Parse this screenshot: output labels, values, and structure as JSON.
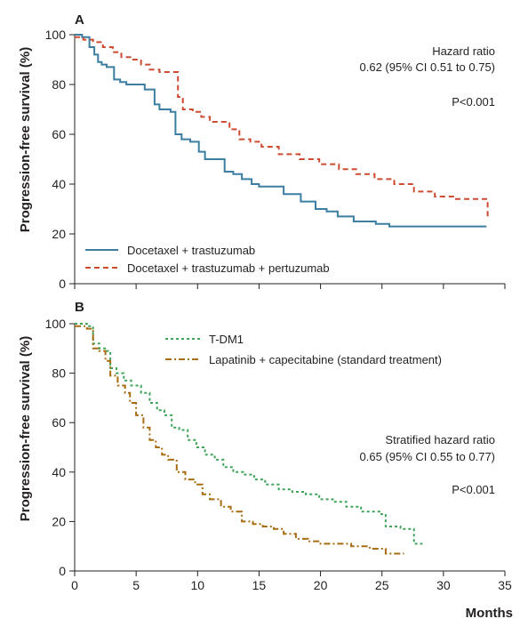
{
  "chart_data": [
    {
      "type": "line",
      "panel": "A",
      "ylabel": "Progression-free survival (%)",
      "xlabel": "",
      "xlim": [
        0,
        35
      ],
      "ylim": [
        0,
        100
      ],
      "yticks": [
        "0",
        "20",
        "40",
        "60",
        "80",
        "100"
      ],
      "xticks": [],
      "annotations": {
        "hr_title": "Hazard ratio",
        "hr_value": "0.62 (95% CI 0.51 to 0.75)",
        "p": "P<0.001"
      },
      "series": [
        {
          "name": "Docetaxel + trastuzumab",
          "color": "#3b7ea1",
          "style": "solid",
          "x": [
            0,
            0.6,
            1.2,
            1.6,
            1.9,
            2.2,
            2.6,
            3.2,
            3.7,
            4.2,
            5.7,
            6.5,
            6.9,
            7.8,
            8.2,
            8.7,
            9.4,
            10.1,
            10.6,
            12.2,
            12.9,
            13.6,
            14.4,
            15.0,
            17.0,
            18.4,
            19.6,
            20.5,
            21.4,
            22.7,
            24.5,
            25.6,
            28.0,
            33.5
          ],
          "y": [
            100,
            99,
            95,
            92,
            89,
            88,
            87,
            82,
            81,
            80,
            78,
            72,
            70,
            69,
            60,
            58,
            57,
            53,
            50,
            45,
            44,
            42,
            40,
            39,
            36,
            33,
            30,
            29,
            27,
            25,
            24,
            23,
            23,
            23
          ]
        },
        {
          "name": "Docetaxel + trastuzumab + pertuzumab",
          "color": "#cc4b31",
          "style": "dashed",
          "x": [
            0,
            0.7,
            1.5,
            2.3,
            3.1,
            3.8,
            4.6,
            5.4,
            6.1,
            6.9,
            8.4,
            8.8,
            9.6,
            10.3,
            11.0,
            12.6,
            13.4,
            14.3,
            15.2,
            16.6,
            18.3,
            19.9,
            21.5,
            22.9,
            24.4,
            26.0,
            27.6,
            29.3,
            30.9,
            33.4,
            33.6
          ],
          "y": [
            99,
            98,
            97,
            95,
            93,
            91,
            90,
            88,
            86,
            85,
            75,
            70,
            69,
            67,
            65,
            62,
            58,
            57,
            55,
            52,
            50,
            48,
            46,
            44,
            42,
            40,
            37,
            35,
            34,
            34,
            26
          ]
        }
      ]
    },
    {
      "type": "line",
      "panel": "B",
      "ylabel": "Progression-free survival (%)",
      "xlabel": "Months",
      "xlim": [
        0,
        35
      ],
      "ylim": [
        0,
        100
      ],
      "yticks": [
        "0",
        "20",
        "40",
        "60",
        "80",
        "100"
      ],
      "xticks": [
        "0",
        "5",
        "10",
        "15",
        "20",
        "25",
        "30",
        "35"
      ],
      "annotations": {
        "hr_title": "Stratified hazard ratio",
        "hr_value": "0.65 (95% CI 0.55 to 0.77)",
        "p": "P<0.001"
      },
      "series": [
        {
          "name": "T-DM1",
          "color": "#3fa35a",
          "style": "dotted",
          "x": [
            0,
            1.0,
            1.5,
            2.0,
            2.6,
            2.9,
            3.4,
            4.0,
            4.6,
            5.4,
            6.1,
            6.7,
            7.3,
            7.9,
            8.5,
            9.2,
            9.9,
            10.6,
            11.4,
            12.1,
            12.9,
            13.7,
            14.6,
            15.5,
            16.6,
            17.7,
            18.8,
            19.9,
            21.0,
            22.1,
            23.3,
            24.8,
            25.3,
            26.5,
            27.6,
            28.3
          ],
          "y": [
            100,
            99,
            92,
            90,
            89,
            82,
            80,
            77,
            75,
            72,
            68,
            65,
            63,
            58,
            57,
            53,
            50,
            47,
            45,
            42,
            40,
            39,
            37,
            35,
            33,
            32,
            31,
            29,
            28,
            26,
            24,
            23,
            18,
            17,
            11,
            11
          ]
        },
        {
          "name": "Lapatinib + capecitabine (standard treatment)",
          "color": "#a86c13",
          "style": "dashdot",
          "x": [
            0,
            1.0,
            1.5,
            2.0,
            2.5,
            2.9,
            3.5,
            4.1,
            4.5,
            5.0,
            5.6,
            6.1,
            6.6,
            7.1,
            7.6,
            8.3,
            9.0,
            9.8,
            10.4,
            11.0,
            11.9,
            12.7,
            13.6,
            14.5,
            15.3,
            16.2,
            17.0,
            18.0,
            19.0,
            20.0,
            21.0,
            22.5,
            24.0,
            25.3,
            26.8
          ],
          "y": [
            99,
            98,
            90,
            89,
            85,
            79,
            75,
            72,
            68,
            63,
            58,
            53,
            50,
            47,
            45,
            40,
            37,
            35,
            31,
            29,
            26,
            24,
            20,
            19,
            18,
            17,
            15,
            13,
            12,
            11,
            11,
            10,
            9,
            7,
            7
          ]
        }
      ]
    }
  ]
}
